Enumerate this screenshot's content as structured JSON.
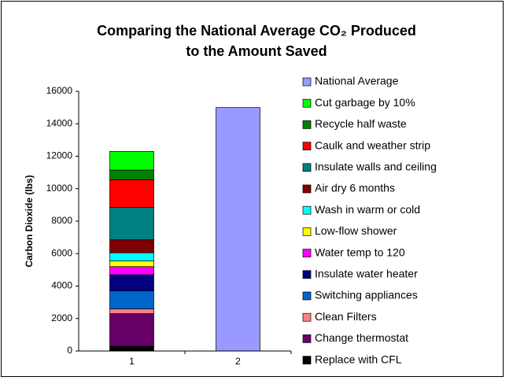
{
  "chart_data": {
    "type": "stacked-bar",
    "title": [
      "Comparing the National Average CO₂ Produced",
      "to the Amount Saved"
    ],
    "y_label": "Carbon Dioxide (lbs)",
    "categories": [
      "1",
      "2"
    ],
    "ylim": [
      0,
      16000
    ],
    "yticks": [
      0,
      2000,
      4000,
      6000,
      8000,
      10000,
      12000,
      14000,
      16000
    ],
    "series": [
      {
        "name": "Replace with CFL",
        "color": "#000000",
        "values": [
          300,
          null
        ]
      },
      {
        "name": "Change thermostat",
        "color": "#660066",
        "values": [
          2000,
          null
        ]
      },
      {
        "name": "Clean Filters",
        "color": "#ff8080",
        "values": [
          300,
          null
        ]
      },
      {
        "name": "Switching appliances",
        "color": "#0066cc",
        "values": [
          1100,
          null
        ]
      },
      {
        "name": "Insulate water heater",
        "color": "#000080",
        "values": [
          1000,
          null
        ]
      },
      {
        "name": "Water temp to 120",
        "color": "#ff00ff",
        "values": [
          500,
          null
        ]
      },
      {
        "name": "Low-flow shower",
        "color": "#ffff00",
        "values": [
          350,
          null
        ]
      },
      {
        "name": "Wash in warm or cold",
        "color": "#00ffff",
        "values": [
          500,
          null
        ]
      },
      {
        "name": "Air dry 6 months",
        "color": "#800000",
        "values": [
          800,
          null
        ]
      },
      {
        "name": "Insulate walls and ceiling",
        "color": "#008080",
        "values": [
          2000,
          null
        ]
      },
      {
        "name": "Caulk and weather strip",
        "color": "#ff0000",
        "values": [
          1700,
          null
        ]
      },
      {
        "name": "Recycle half waste",
        "color": "#008000",
        "values": [
          600,
          null
        ]
      },
      {
        "name": "Cut garbage by 10%",
        "color": "#00ff00",
        "values": [
          1150,
          null
        ]
      },
      {
        "name": "National Average",
        "color": "#9999ff",
        "values": [
          null,
          15000
        ]
      }
    ]
  }
}
